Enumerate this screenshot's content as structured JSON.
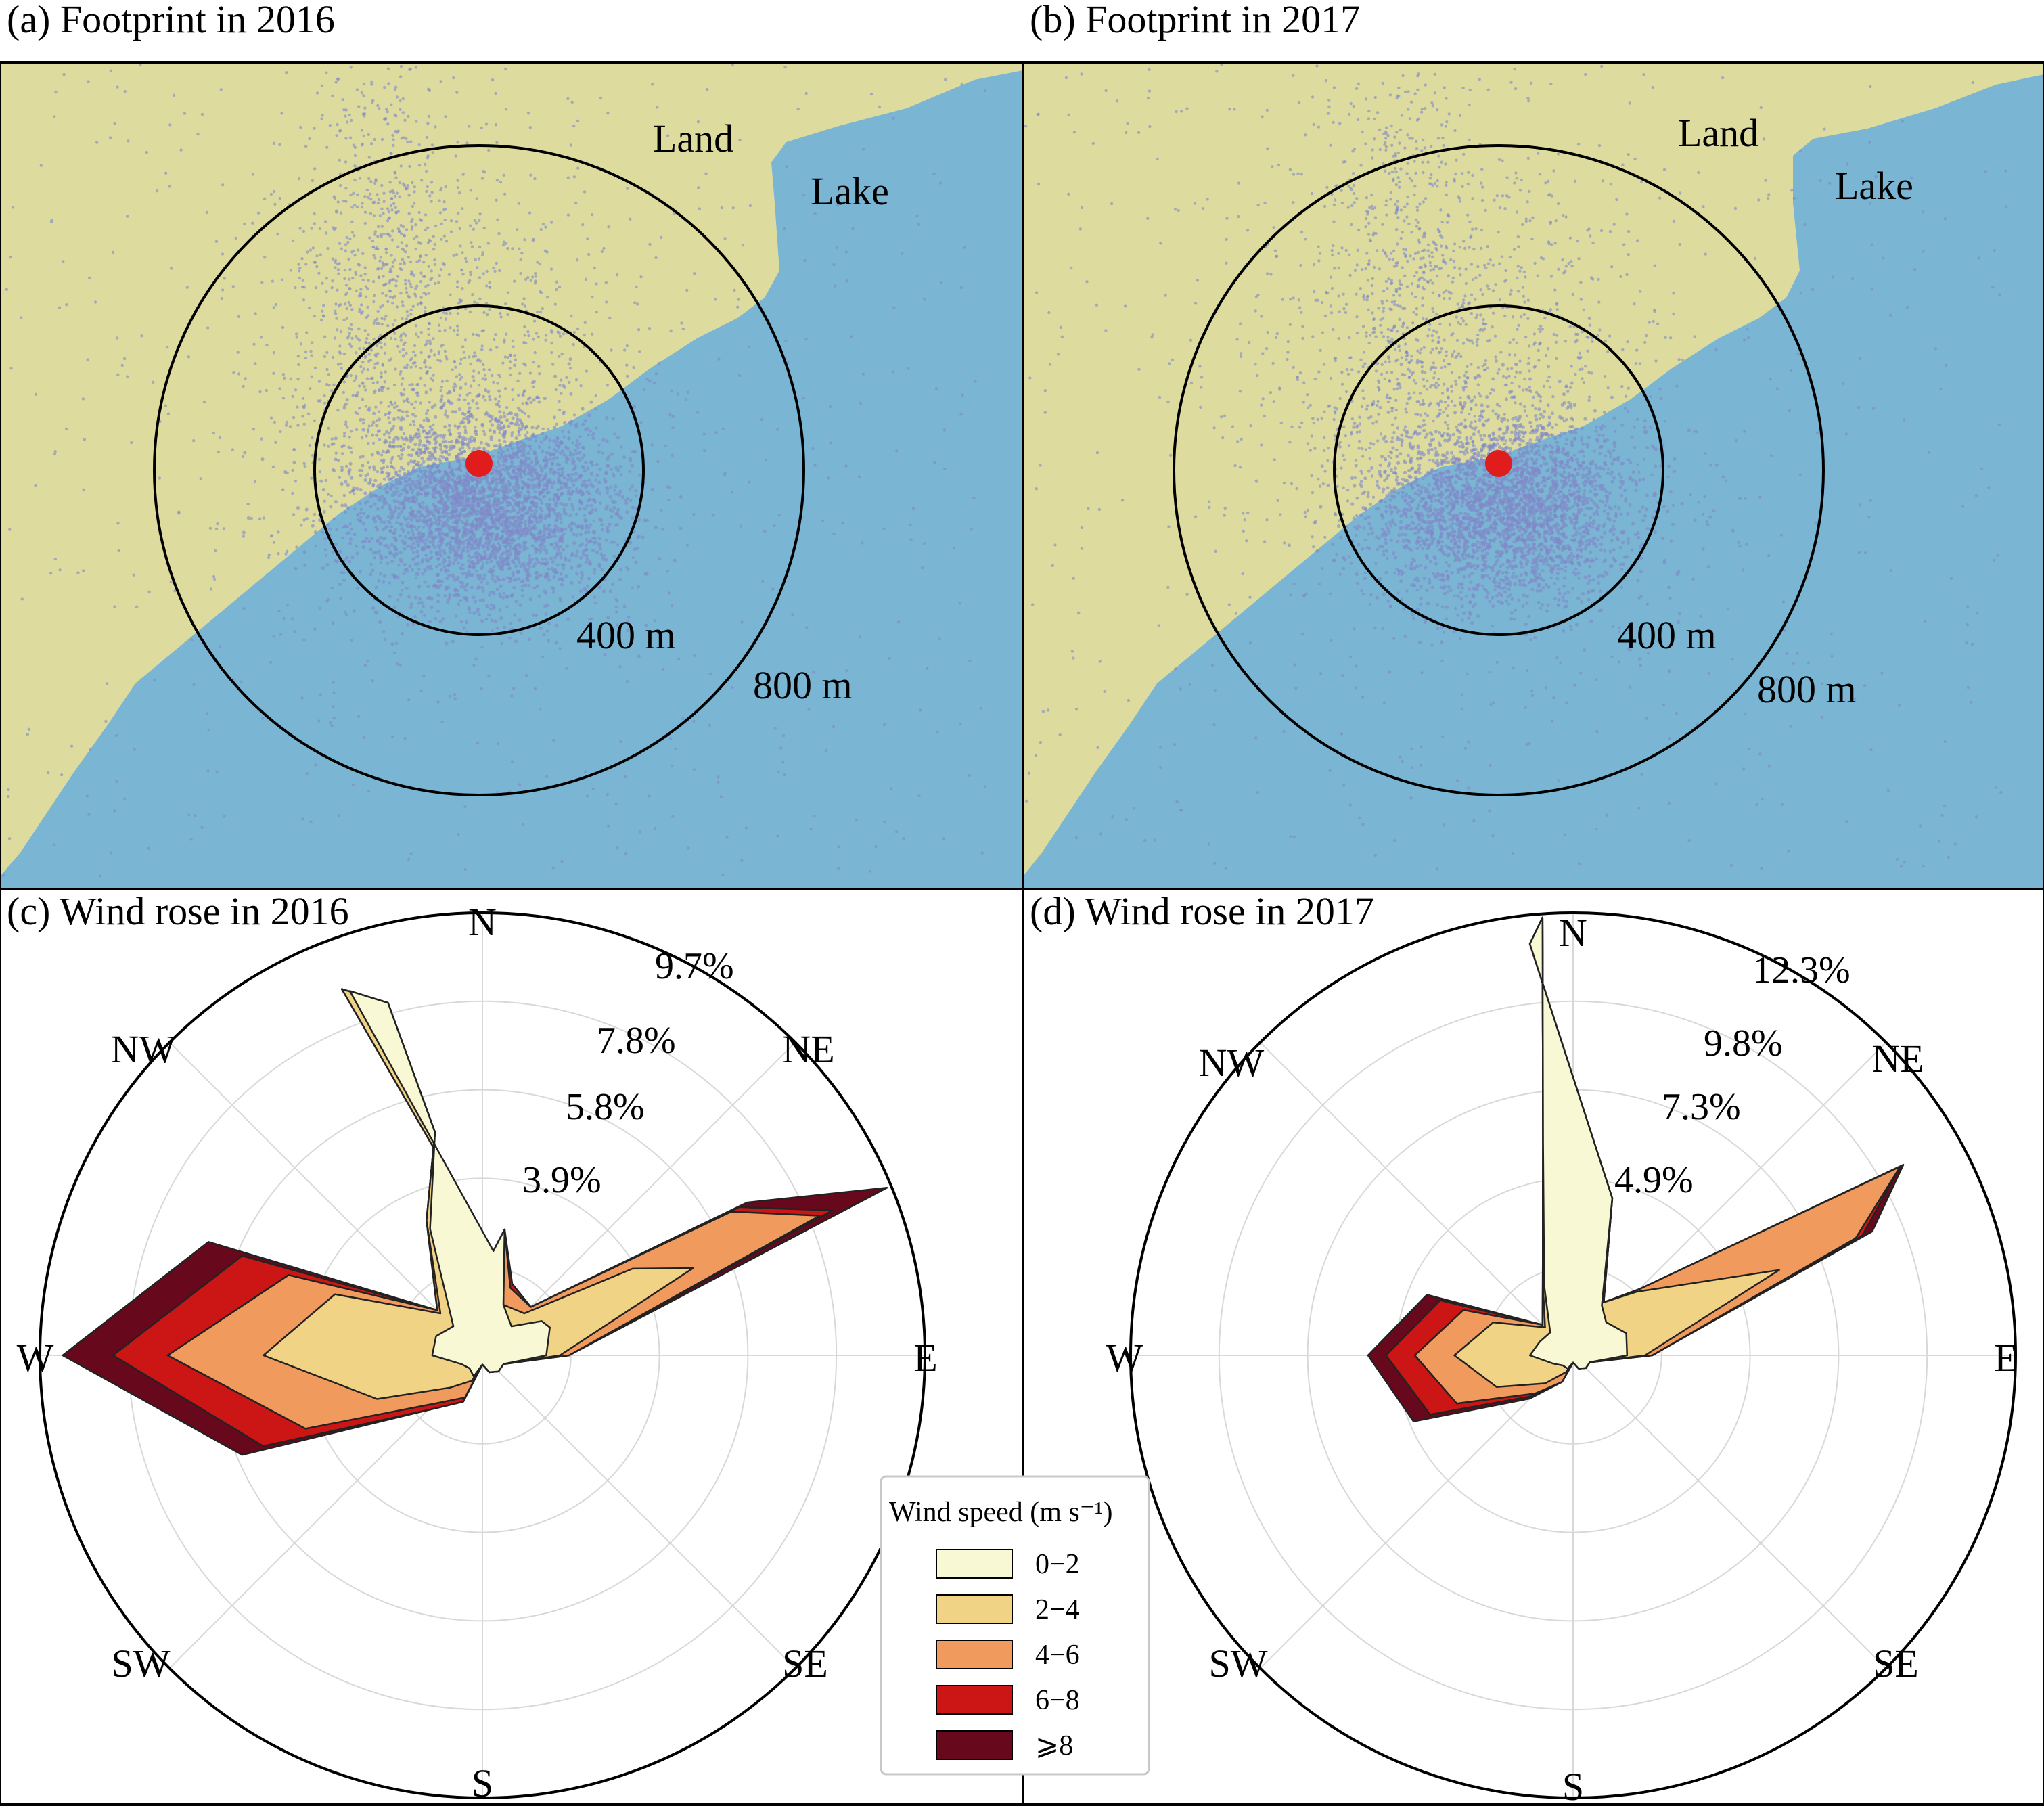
{
  "panels": {
    "a": {
      "title": "(a) Footprint in 2016",
      "land_label": "Land",
      "lake_label": "Lake",
      "ring_inner_label": "400 m",
      "ring_outer_label": "800 m"
    },
    "b": {
      "title": "(b) Footprint in 2017",
      "land_label": "Land",
      "lake_label": "Lake",
      "ring_inner_label": "400 m",
      "ring_outer_label": "800 m"
    },
    "c": {
      "title": "(c) Wind rose in 2016",
      "ring_labels": [
        "3.9%",
        "5.8%",
        "7.8%",
        "9.7%"
      ]
    },
    "d": {
      "title": "(d) Wind rose in 2017",
      "ring_labels": [
        "4.9%",
        "7.3%",
        "9.8%",
        "12.3%"
      ]
    }
  },
  "directions": {
    "n": "N",
    "ne": "NE",
    "e": "E",
    "se": "SE",
    "s": "S",
    "sw": "SW",
    "w": "W",
    "nw": "NW"
  },
  "legend": {
    "title": "Wind speed (m s⁻¹)",
    "items": [
      "0−2",
      "2−4",
      "4−6",
      "6−8",
      "⩾8"
    ]
  },
  "colors": {
    "land": "#dddc9e",
    "lake": "#7ab5d3",
    "station": "#e01c1c",
    "footprint_points": "#8088c8",
    "bins": [
      "#f8f9d4",
      "#f1d386",
      "#f19a5d",
      "#cc1515",
      "#68081c"
    ]
  },
  "chart_data": [
    {
      "panel": "c",
      "type": "wind_rose",
      "year": 2016,
      "unit": "% frequency",
      "max_radius": 9.7,
      "ring_values": [
        3.9,
        5.8,
        7.8,
        9.7
      ],
      "bins": [
        "0−2",
        "2−4",
        "4−6",
        "6−8",
        "⩾8"
      ],
      "cumulative_series": [
        {
          "name": "0−2",
          "points": [
            [
              6.0,
              2.3
            ],
            [
              10.0,
              2.8
            ],
            [
              22.5,
              1.2
            ],
            [
              45.0,
              0.9
            ],
            [
              60.0,
              1.5
            ],
            [
              67.5,
              1.6
            ],
            [
              90.0,
              1.4
            ],
            [
              112.5,
              0.5
            ],
            [
              135.0,
              0.5
            ],
            [
              157.5,
              0.4
            ],
            [
              180.0,
              0.2
            ],
            [
              202.5,
              0.5
            ],
            [
              225.0,
              0.4
            ],
            [
              247.5,
              0.5
            ],
            [
              270.0,
              1.1
            ],
            [
              292.5,
              1.1
            ],
            [
              315.0,
              0.9
            ],
            [
              337.5,
              3.0
            ],
            [
              348.0,
              5.0
            ],
            [
              345.0,
              8.0
            ],
            [
              340.0,
              8.5
            ]
          ]
        },
        {
          "name": "2−4",
          "points": [
            [
              6.0,
              2.3
            ],
            [
              10.0,
              2.8
            ],
            [
              22.5,
              1.2
            ],
            [
              45.0,
              1.3
            ],
            [
              60.0,
              3.8
            ],
            [
              67.5,
              5.0
            ],
            [
              90.0,
              1.7
            ],
            [
              112.5,
              0.5
            ],
            [
              135.0,
              0.5
            ],
            [
              157.5,
              0.4
            ],
            [
              180.0,
              0.2
            ],
            [
              202.5,
              0.6
            ],
            [
              225.0,
              1.0
            ],
            [
              247.5,
              2.5
            ],
            [
              270.0,
              4.8
            ],
            [
              292.5,
              3.5
            ],
            [
              315.0,
              1.3
            ],
            [
              337.5,
              3.2
            ],
            [
              348.0,
              5.0
            ],
            [
              345.0,
              8.0
            ],
            [
              339.0,
              8.6
            ]
          ]
        },
        {
          "name": "4−6",
          "points": [
            [
              6.0,
              2.3
            ],
            [
              10.0,
              2.8
            ],
            [
              22.5,
              1.6
            ],
            [
              45.0,
              1.5
            ],
            [
              60.0,
              6.3
            ],
            [
              67.5,
              8.0
            ],
            [
              90.0,
              1.9
            ],
            [
              112.5,
              0.5
            ],
            [
              135.0,
              0.5
            ],
            [
              157.5,
              0.4
            ],
            [
              180.0,
              0.2
            ],
            [
              202.5,
              1.0
            ],
            [
              225.0,
              1.5
            ],
            [
              247.5,
              4.2
            ],
            [
              270.0,
              6.9
            ],
            [
              292.5,
              4.6
            ],
            [
              315.0,
              1.4
            ],
            [
              337.5,
              3.2
            ],
            [
              348.0,
              5.0
            ],
            [
              345.0,
              8.0
            ],
            [
              339.0,
              8.6
            ]
          ]
        },
        {
          "name": "6−8",
          "points": [
            [
              6.0,
              2.3
            ],
            [
              10.0,
              2.8
            ],
            [
              22.5,
              1.7
            ],
            [
              45.0,
              1.5
            ],
            [
              60.0,
              6.5
            ],
            [
              67.5,
              8.3
            ],
            [
              90.0,
              1.9
            ],
            [
              112.5,
              0.5
            ],
            [
              135.0,
              0.5
            ],
            [
              157.5,
              0.4
            ],
            [
              180.0,
              0.2
            ],
            [
              202.5,
              1.1
            ],
            [
              225.0,
              1.7
            ],
            [
              247.5,
              5.2
            ],
            [
              270.0,
              8.1
            ],
            [
              292.5,
              5.7
            ],
            [
              315.0,
              1.4
            ],
            [
              337.5,
              3.2
            ],
            [
              348.0,
              5.0
            ],
            [
              345.0,
              8.0
            ],
            [
              339.0,
              8.6
            ]
          ]
        },
        {
          "name": "⩾8",
          "points": [
            [
              6.0,
              2.3
            ],
            [
              10.0,
              2.8
            ],
            [
              22.5,
              1.7
            ],
            [
              45.0,
              1.5
            ],
            [
              60.0,
              6.7
            ],
            [
              67.5,
              9.6
            ],
            [
              90.0,
              1.9
            ],
            [
              112.5,
              0.5
            ],
            [
              135.0,
              0.5
            ],
            [
              157.5,
              0.4
            ],
            [
              180.0,
              0.2
            ],
            [
              202.5,
              1.1
            ],
            [
              225.0,
              1.7
            ],
            [
              247.5,
              5.7
            ],
            [
              270.0,
              9.2
            ],
            [
              292.5,
              6.5
            ],
            [
              315.0,
              1.4
            ],
            [
              337.5,
              3.2
            ],
            [
              348.0,
              5.0
            ],
            [
              345.0,
              8.0
            ],
            [
              339.0,
              8.6
            ]
          ]
        }
      ]
    },
    {
      "panel": "d",
      "type": "wind_rose",
      "year": 2017,
      "unit": "% frequency",
      "max_radius": 12.3,
      "ring_values": [
        4.9,
        7.3,
        9.8,
        12.3
      ],
      "bins": [
        "0−2",
        "2−4",
        "4−6",
        "6−8",
        "⩾8"
      ],
      "cumulative_series": [
        {
          "name": "0−2",
          "points": [
            [
              14.0,
              4.5
            ],
            [
              30.0,
              1.6
            ],
            [
              45.0,
              1.3
            ],
            [
              67.5,
              1.6
            ],
            [
              90.0,
              1.5
            ],
            [
              112.5,
              0.5
            ],
            [
              135.0,
              0.5
            ],
            [
              157.5,
              0.4
            ],
            [
              180.0,
              0.2
            ],
            [
              202.5,
              0.4
            ],
            [
              225.0,
              0.4
            ],
            [
              247.5,
              0.6
            ],
            [
              270.0,
              1.2
            ],
            [
              292.5,
              1.0
            ],
            [
              315.0,
              0.9
            ],
            [
              337.5,
              2.1
            ],
            [
              352.0,
              6.0
            ],
            [
              356.0,
              12.2
            ],
            [
              354.0,
              11.5
            ]
          ]
        },
        {
          "name": "2−4",
          "points": [
            [
              14.0,
              4.5
            ],
            [
              30.0,
              1.7
            ],
            [
              45.0,
              2.5
            ],
            [
              67.5,
              6.2
            ],
            [
              90.0,
              2.0
            ],
            [
              112.5,
              0.5
            ],
            [
              135.0,
              0.5
            ],
            [
              157.5,
              0.4
            ],
            [
              180.0,
              0.2
            ],
            [
              202.5,
              0.5
            ],
            [
              225.0,
              1.1
            ],
            [
              247.5,
              2.3
            ],
            [
              270.0,
              3.3
            ],
            [
              292.5,
              2.4
            ],
            [
              315.0,
              1.1
            ],
            [
              337.5,
              2.2
            ],
            [
              352.0,
              6.0
            ],
            [
              356.0,
              12.2
            ],
            [
              354.0,
              11.5
            ]
          ]
        },
        {
          "name": "4−6",
          "points": [
            [
              14.0,
              4.5
            ],
            [
              30.0,
              1.7
            ],
            [
              45.0,
              2.6
            ],
            [
              60.0,
              10.5
            ],
            [
              67.5,
              8.5
            ],
            [
              90.0,
              2.2
            ],
            [
              112.5,
              0.5
            ],
            [
              135.0,
              0.5
            ],
            [
              157.5,
              0.4
            ],
            [
              180.0,
              0.2
            ],
            [
              202.5,
              0.8
            ],
            [
              225.0,
              1.5
            ],
            [
              247.5,
              3.5
            ],
            [
              270.0,
              4.4
            ],
            [
              292.5,
              3.3
            ],
            [
              315.0,
              1.2
            ],
            [
              337.5,
              2.2
            ],
            [
              352.0,
              6.0
            ],
            [
              356.0,
              12.2
            ],
            [
              354.0,
              11.5
            ]
          ]
        },
        {
          "name": "6−8",
          "points": [
            [
              14.0,
              4.5
            ],
            [
              30.0,
              1.7
            ],
            [
              45.0,
              2.6
            ],
            [
              60.0,
              10.5
            ],
            [
              67.5,
              8.7
            ],
            [
              90.0,
              2.2
            ],
            [
              112.5,
              0.5
            ],
            [
              135.0,
              0.5
            ],
            [
              157.5,
              0.4
            ],
            [
              180.0,
              0.2
            ],
            [
              202.5,
              0.8
            ],
            [
              225.0,
              1.6
            ],
            [
              247.5,
              4.3
            ],
            [
              270.0,
              5.2
            ],
            [
              292.5,
              4.0
            ],
            [
              315.0,
              1.2
            ],
            [
              337.5,
              2.2
            ],
            [
              352.0,
              6.0
            ],
            [
              356.0,
              12.2
            ],
            [
              354.0,
              11.5
            ]
          ]
        },
        {
          "name": "⩾8",
          "points": [
            [
              14.0,
              4.5
            ],
            [
              30.0,
              1.7
            ],
            [
              45.0,
              2.6
            ],
            [
              60.0,
              10.6
            ],
            [
              67.5,
              9.0
            ],
            [
              90.0,
              2.2
            ],
            [
              112.5,
              0.5
            ],
            [
              135.0,
              0.5
            ],
            [
              157.5,
              0.4
            ],
            [
              180.0,
              0.2
            ],
            [
              202.5,
              0.8
            ],
            [
              225.0,
              1.7
            ],
            [
              247.5,
              4.8
            ],
            [
              270.0,
              5.7
            ],
            [
              292.5,
              4.4
            ],
            [
              315.0,
              1.2
            ],
            [
              337.5,
              2.2
            ],
            [
              352.0,
              6.0
            ],
            [
              356.0,
              12.2
            ],
            [
              354.0,
              11.5
            ]
          ]
        }
      ]
    }
  ]
}
